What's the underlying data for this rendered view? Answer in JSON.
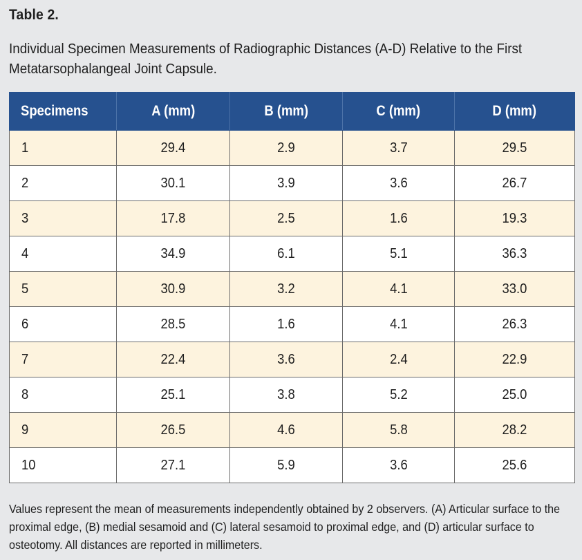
{
  "table_label": "Table 2.",
  "caption": "Individual Specimen Measurements of Radiographic Distances (A-D) Relative to the First Metatarsophalangeal Joint Capsule.",
  "columns": [
    "Specimens",
    "A (mm)",
    "B (mm)",
    "C (mm)",
    "D (mm)"
  ],
  "rows": [
    [
      "1",
      "29.4",
      "2.9",
      "3.7",
      "29.5"
    ],
    [
      "2",
      "30.1",
      "3.9",
      "3.6",
      "26.7"
    ],
    [
      "3",
      "17.8",
      "2.5",
      "1.6",
      "19.3"
    ],
    [
      "4",
      "34.9",
      "6.1",
      "5.1",
      "36.3"
    ],
    [
      "5",
      "30.9",
      "3.2",
      "4.1",
      "33.0"
    ],
    [
      "6",
      "28.5",
      "1.6",
      "4.1",
      "26.3"
    ],
    [
      "7",
      "22.4",
      "3.6",
      "2.4",
      "22.9"
    ],
    [
      "8",
      "25.1",
      "3.8",
      "5.2",
      "25.0"
    ],
    [
      "9",
      "26.5",
      "4.6",
      "5.8",
      "28.2"
    ],
    [
      "10",
      "27.1",
      "5.9",
      "3.6",
      "25.6"
    ]
  ],
  "footnote": "Values represent the mean of measurements independently obtained by 2 observers. (A) Articular surface to the proximal edge, (B) medial sesamoid and (C) lateral sesamoid to proximal edge, and (D) articular surface to osteotomy. All distances are reported in millimeters.",
  "colors": {
    "header_bg": "#26518f",
    "stripe_bg": "#fdf3de",
    "page_bg": "#e7e8ea"
  }
}
